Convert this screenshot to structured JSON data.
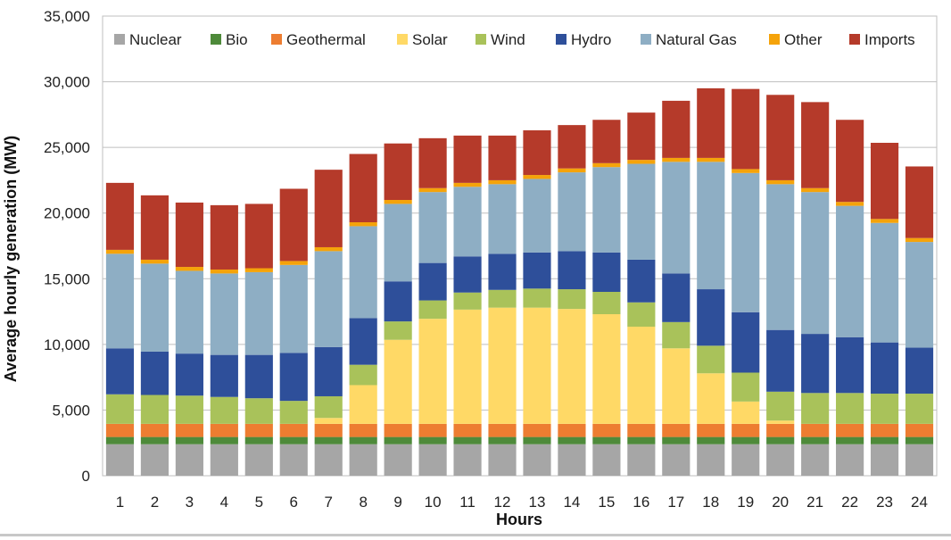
{
  "chart_data": {
    "type": "bar",
    "stacked": true,
    "xlabel": "Hours",
    "ylabel": "Average hourly generation (MW)",
    "ylim": [
      0,
      35000
    ],
    "yticks": [
      0,
      5000,
      10000,
      15000,
      20000,
      25000,
      30000,
      35000
    ],
    "ytick_labels": [
      "0",
      "5,000",
      "10,000",
      "15,000",
      "20,000",
      "25,000",
      "30,000",
      "35,000"
    ],
    "categories": [
      "1",
      "2",
      "3",
      "4",
      "5",
      "6",
      "7",
      "8",
      "9",
      "10",
      "11",
      "12",
      "13",
      "14",
      "15",
      "16",
      "17",
      "18",
      "19",
      "20",
      "21",
      "22",
      "23",
      "24"
    ],
    "grid": "horizontal",
    "legend_position": "top",
    "series": [
      {
        "name": "Nuclear",
        "color": "#a6a6a6",
        "values": [
          2400,
          2400,
          2400,
          2400,
          2400,
          2400,
          2400,
          2400,
          2400,
          2400,
          2400,
          2400,
          2400,
          2400,
          2400,
          2400,
          2400,
          2400,
          2400,
          2400,
          2400,
          2400,
          2400,
          2400
        ]
      },
      {
        "name": "Bio",
        "color": "#4e8a3a",
        "values": [
          550,
          550,
          550,
          550,
          550,
          550,
          550,
          550,
          550,
          550,
          550,
          550,
          550,
          550,
          550,
          550,
          550,
          550,
          550,
          550,
          550,
          550,
          550,
          550
        ]
      },
      {
        "name": "Geothermal",
        "color": "#ed7d31",
        "values": [
          1000,
          1000,
          1000,
          1000,
          1000,
          1000,
          1000,
          1000,
          1000,
          1000,
          1000,
          1000,
          1000,
          1000,
          1000,
          1000,
          1000,
          1000,
          1000,
          1000,
          1000,
          1000,
          1000,
          1000
        ]
      },
      {
        "name": "Solar",
        "color": "#ffd966",
        "values": [
          0,
          0,
          0,
          0,
          0,
          0,
          450,
          2950,
          6400,
          8000,
          8700,
          8850,
          8850,
          8750,
          8350,
          7400,
          5750,
          3850,
          1700,
          250,
          0,
          0,
          0,
          0
        ]
      },
      {
        "name": "Wind",
        "color": "#a9c25a",
        "values": [
          2250,
          2200,
          2150,
          2050,
          1950,
          1750,
          1650,
          1550,
          1400,
          1400,
          1300,
          1350,
          1450,
          1500,
          1700,
          1850,
          2000,
          2100,
          2200,
          2200,
          2350,
          2350,
          2300,
          2300
        ]
      },
      {
        "name": "Hydro",
        "color": "#2e4f9a",
        "values": [
          3500,
          3300,
          3200,
          3200,
          3300,
          3650,
          3750,
          3550,
          3050,
          2850,
          2750,
          2750,
          2750,
          2900,
          3000,
          3250,
          3700,
          4300,
          4600,
          4700,
          4500,
          4250,
          3900,
          3500
        ]
      },
      {
        "name": "Natural Gas",
        "color": "#8eaec4",
        "values": [
          7200,
          6700,
          6300,
          6200,
          6300,
          6700,
          7300,
          7000,
          5900,
          5400,
          5300,
          5300,
          5600,
          6000,
          6500,
          7300,
          8500,
          9700,
          10600,
          11100,
          10800,
          10000,
          9100,
          8050
        ]
      },
      {
        "name": "Other",
        "color": "#f5a30a",
        "values": [
          300,
          300,
          300,
          300,
          300,
          300,
          300,
          300,
          300,
          300,
          300,
          300,
          300,
          300,
          300,
          300,
          300,
          300,
          300,
          300,
          300,
          300,
          300,
          300
        ]
      },
      {
        "name": "Imports",
        "color": "#b53a2a",
        "values": [
          5100,
          4900,
          4900,
          4900,
          4900,
          5500,
          5900,
          5200,
          4300,
          3800,
          3600,
          3400,
          3400,
          3300,
          3300,
          3600,
          4350,
          5300,
          6100,
          6500,
          6550,
          6250,
          5800,
          5450
        ]
      }
    ]
  }
}
